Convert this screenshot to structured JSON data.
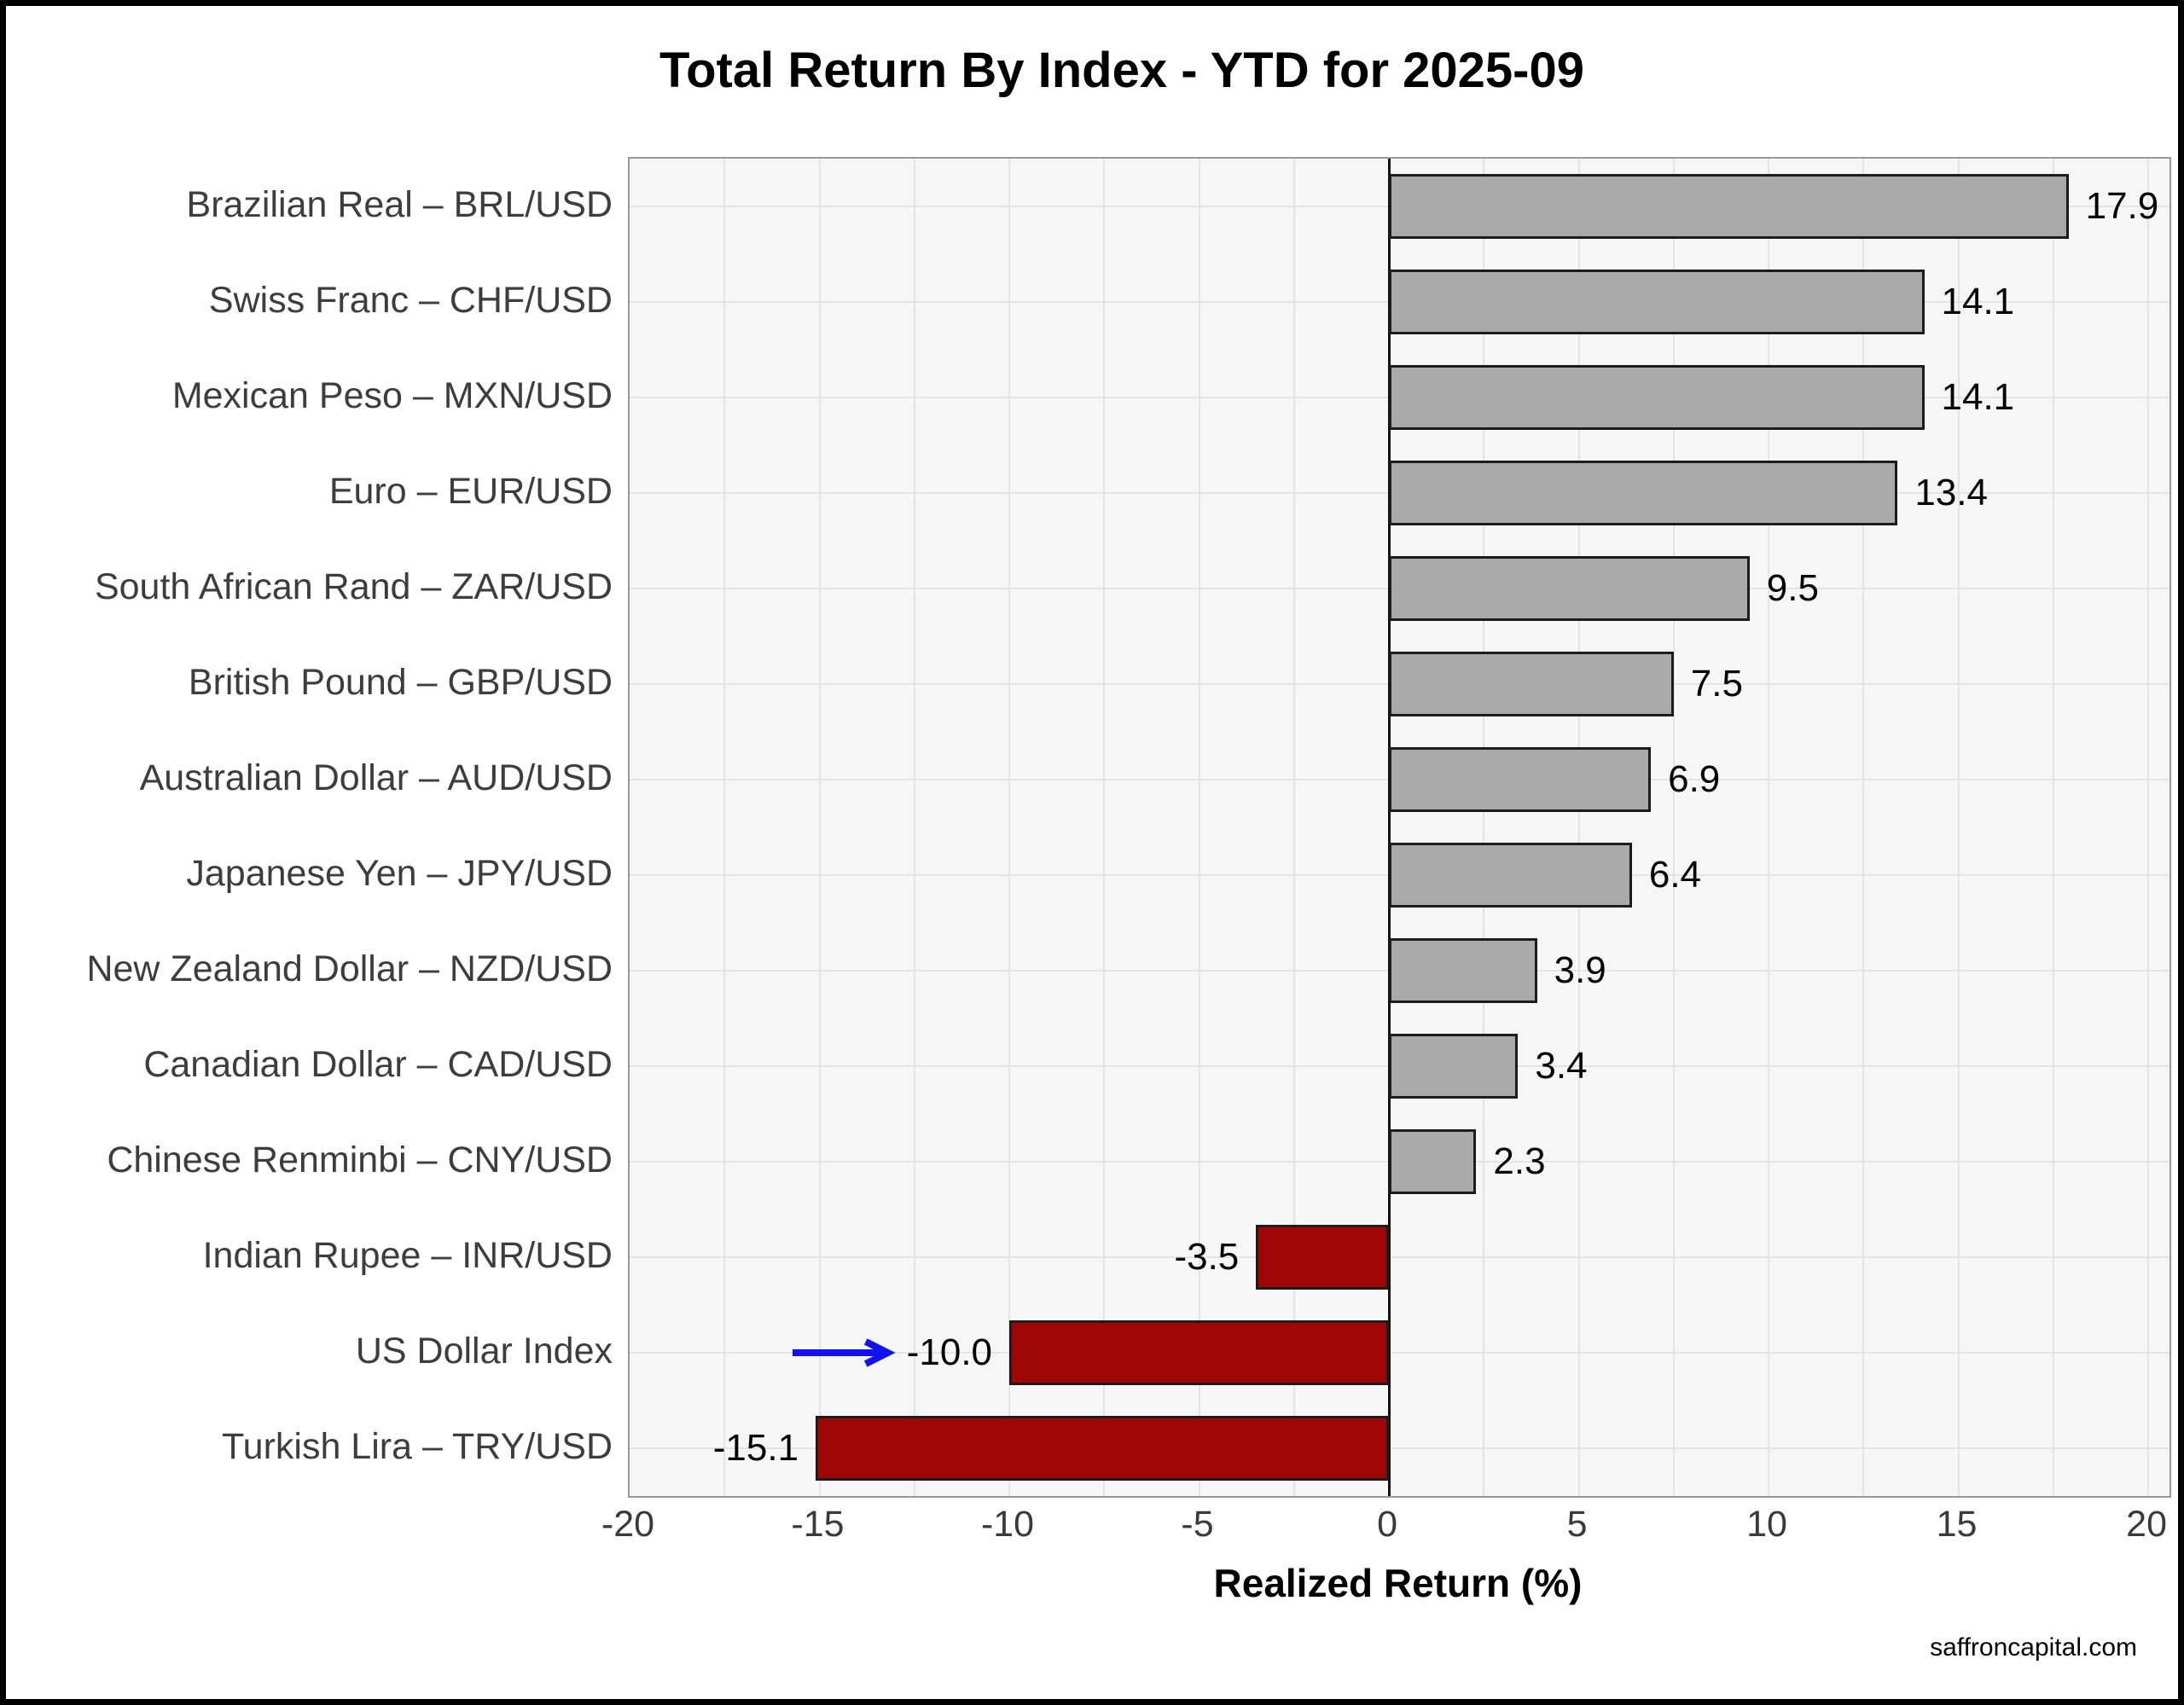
{
  "title": "Total Return By Index - YTD for 2025-09",
  "footer": "saffroncapital.com",
  "chart_data": {
    "type": "bar",
    "orientation": "horizontal",
    "title": "Total Return By Index - YTD for 2025-09",
    "xlabel": "Realized Return (%)",
    "categories": [
      "Brazilian Real – BRL/USD",
      "Swiss Franc – CHF/USD",
      "Mexican Peso – MXN/USD",
      "Euro – EUR/USD",
      "South African Rand – ZAR/USD",
      "British Pound – GBP/USD",
      "Australian Dollar – AUD/USD",
      "Japanese Yen – JPY/USD",
      "New Zealand Dollar – NZD/USD",
      "Canadian Dollar – CAD/USD",
      "Chinese Renminbi – CNY/USD",
      "Indian Rupee – INR/USD",
      "US Dollar Index",
      "Turkish Lira – TRY/USD"
    ],
    "values": [
      17.9,
      14.1,
      14.1,
      13.4,
      9.5,
      7.5,
      6.9,
      6.4,
      3.9,
      3.4,
      2.3,
      -3.5,
      -10.0,
      -15.1
    ],
    "xlim": [
      -20,
      20.56
    ],
    "x_ticks": [
      -20,
      -15,
      -10,
      -5,
      0,
      5,
      10,
      15,
      20
    ],
    "grid": {
      "vertical_interval": 2.5,
      "horizontal": "row-centers",
      "grid_on": true
    },
    "legend": "none",
    "colors": {
      "positive_bar": "#aaaaaa",
      "negative_bar": "#a00606",
      "bar_edge": "#1c1c1c",
      "plot_background": "#f6f6f6",
      "gridline": "#e4e4e4",
      "zero_line": "#111111",
      "annotation_arrow": "#1212ef"
    },
    "annotation": {
      "type": "arrow-right",
      "category": "US Dollar Index",
      "x_from": -15.8,
      "x_to": -13.2
    }
  }
}
